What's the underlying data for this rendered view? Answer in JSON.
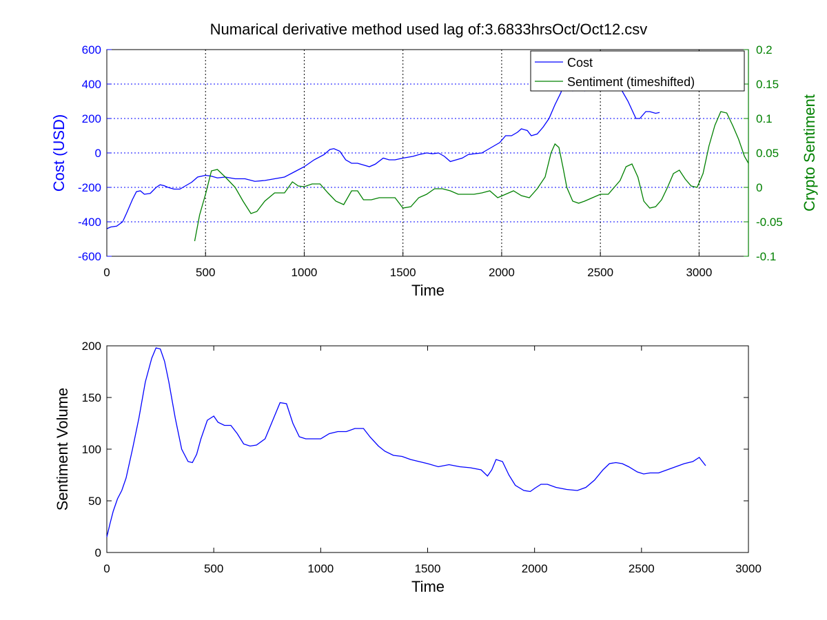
{
  "figure": {
    "title": "Numarical derivative method used lag of:3.6833hrsOct/Oct12.csv",
    "colors": {
      "cost": "#0000ff",
      "sentiment": "#008000",
      "axis": "#000000",
      "grid_x": "#000000",
      "grid_y": "#0000ff"
    }
  },
  "chart_data": [
    {
      "type": "line",
      "title": "Numarical derivative method used lag of:3.6833hrsOct/Oct12.csv",
      "xlabel": "Time",
      "ylabel": "Cost (USD)",
      "y2label": "Crypto Sentiment",
      "xlim": [
        0,
        3250
      ],
      "ylim": [
        -600,
        600
      ],
      "y2lim": [
        -0.1,
        0.2
      ],
      "xticks": [
        0,
        500,
        1000,
        1500,
        2000,
        2500,
        3000
      ],
      "yticks": [
        -600,
        -400,
        -200,
        0,
        200,
        400,
        600
      ],
      "y2ticks": [
        -0.1,
        -0.05,
        0,
        0.05,
        0.1,
        0.15,
        0.2
      ],
      "y2ticklabels": [
        "-0.1",
        "-0.05",
        "0",
        "0.05",
        "0.1",
        "0.15",
        "0.2"
      ],
      "grid": true,
      "legend": {
        "placement": "top-right",
        "entries": [
          "Cost",
          "Sentiment (timeshifted)"
        ]
      },
      "series": [
        {
          "name": "Cost",
          "axis": "left",
          "x": [
            0,
            20,
            50,
            80,
            100,
            130,
            150,
            170,
            190,
            220,
            250,
            270,
            290,
            310,
            340,
            370,
            400,
            430,
            460,
            500,
            530,
            560,
            600,
            650,
            700,
            750,
            800,
            850,
            900,
            950,
            1000,
            1050,
            1100,
            1130,
            1150,
            1180,
            1210,
            1240,
            1270,
            1300,
            1330,
            1360,
            1400,
            1430,
            1460,
            1500,
            1550,
            1580,
            1620,
            1650,
            1680,
            1710,
            1740,
            1770,
            1800,
            1830,
            1860,
            1900,
            1930,
            1960,
            1990,
            2020,
            2050,
            2080,
            2100,
            2130,
            2150,
            2180,
            2210,
            2240,
            2270,
            2300,
            2320,
            2340,
            2360,
            2390,
            2420,
            2450,
            2480,
            2510,
            2540,
            2560,
            2580,
            2610,
            2640,
            2660,
            2680,
            2700,
            2730,
            2750,
            2780,
            2800
          ],
          "y": [
            -440,
            -430,
            -425,
            -400,
            -350,
            -270,
            -225,
            -220,
            -240,
            -235,
            -200,
            -185,
            -190,
            -200,
            -210,
            -210,
            -190,
            -170,
            -140,
            -130,
            -135,
            -145,
            -140,
            -150,
            -150,
            -165,
            -160,
            -150,
            -140,
            -110,
            -80,
            -40,
            -10,
            20,
            25,
            10,
            -40,
            -60,
            -60,
            -70,
            -80,
            -65,
            -30,
            -40,
            -40,
            -30,
            -20,
            -10,
            0,
            -5,
            0,
            -20,
            -50,
            -40,
            -30,
            -10,
            -5,
            0,
            20,
            40,
            60,
            100,
            100,
            120,
            140,
            130,
            100,
            110,
            150,
            200,
            280,
            350,
            420,
            390,
            360,
            370,
            360,
            380,
            420,
            450,
            460,
            440,
            400,
            360,
            300,
            250,
            200,
            200,
            240,
            240,
            230,
            235
          ]
        },
        {
          "name": "Sentiment (timeshifted)",
          "axis": "right",
          "x": [
            445,
            470,
            500,
            530,
            560,
            600,
            650,
            690,
            730,
            760,
            800,
            850,
            900,
            940,
            970,
            1000,
            1040,
            1080,
            1120,
            1160,
            1200,
            1240,
            1270,
            1300,
            1340,
            1380,
            1420,
            1460,
            1500,
            1540,
            1580,
            1620,
            1660,
            1700,
            1740,
            1780,
            1820,
            1860,
            1900,
            1940,
            1980,
            2020,
            2060,
            2100,
            2140,
            2180,
            2220,
            2250,
            2270,
            2290,
            2310,
            2330,
            2360,
            2390,
            2420,
            2460,
            2500,
            2540,
            2570,
            2600,
            2630,
            2660,
            2690,
            2720,
            2750,
            2780,
            2810,
            2840,
            2870,
            2900,
            2930,
            2960,
            2990,
            3020,
            3050,
            3080,
            3110,
            3140,
            3170,
            3200,
            3230,
            3250
          ],
          "y": [
            -0.078,
            -0.04,
            -0.01,
            0.024,
            0.026,
            0.015,
            0.0,
            -0.02,
            -0.038,
            -0.035,
            -0.02,
            -0.008,
            -0.008,
            0.008,
            0.002,
            0.001,
            0.005,
            0.005,
            -0.008,
            -0.02,
            -0.025,
            -0.005,
            -0.005,
            -0.018,
            -0.018,
            -0.015,
            -0.015,
            -0.015,
            -0.03,
            -0.028,
            -0.015,
            -0.01,
            -0.002,
            -0.002,
            -0.005,
            -0.01,
            -0.01,
            -0.01,
            -0.008,
            -0.005,
            -0.015,
            -0.01,
            -0.005,
            -0.012,
            -0.015,
            -0.002,
            0.015,
            0.05,
            0.063,
            0.058,
            0.03,
            0.0,
            -0.02,
            -0.023,
            -0.02,
            -0.015,
            -0.01,
            -0.01,
            0.0,
            0.01,
            0.03,
            0.034,
            0.015,
            -0.02,
            -0.03,
            -0.028,
            -0.018,
            0.0,
            0.02,
            0.025,
            0.012,
            0.002,
            0.0,
            0.02,
            0.06,
            0.09,
            0.11,
            0.108,
            0.09,
            0.07,
            0.045,
            0.035
          ]
        }
      ]
    },
    {
      "type": "line",
      "xlabel": "Time",
      "ylabel": "Sentiment Volume",
      "xlim": [
        0,
        3000
      ],
      "ylim": [
        0,
        200
      ],
      "xticks": [
        0,
        500,
        1000,
        1500,
        2000,
        2500,
        3000
      ],
      "yticks": [
        0,
        50,
        100,
        150,
        200
      ],
      "grid": false,
      "series": [
        {
          "x": [
            0,
            15,
            30,
            50,
            70,
            90,
            120,
            150,
            180,
            210,
            230,
            250,
            270,
            290,
            320,
            350,
            380,
            400,
            420,
            440,
            470,
            500,
            520,
            550,
            580,
            610,
            640,
            670,
            700,
            740,
            780,
            810,
            840,
            870,
            900,
            930,
            960,
            1000,
            1040,
            1080,
            1120,
            1160,
            1200,
            1230,
            1270,
            1300,
            1340,
            1380,
            1420,
            1460,
            1500,
            1550,
            1600,
            1650,
            1700,
            1750,
            1780,
            1800,
            1820,
            1850,
            1880,
            1910,
            1950,
            1980,
            2000,
            2030,
            2060,
            2100,
            2150,
            2200,
            2240,
            2280,
            2320,
            2350,
            2380,
            2410,
            2440,
            2480,
            2510,
            2540,
            2580,
            2620,
            2660,
            2700,
            2740,
            2770,
            2800
          ],
          "y": [
            15,
            28,
            40,
            52,
            60,
            72,
            100,
            130,
            165,
            188,
            198,
            197,
            185,
            165,
            130,
            100,
            88,
            87,
            95,
            110,
            128,
            132,
            126,
            123,
            123,
            115,
            105,
            103,
            104,
            110,
            130,
            145,
            144,
            125,
            112,
            110,
            110,
            110,
            115,
            117,
            117,
            120,
            120,
            112,
            103,
            98,
            94,
            93,
            90,
            88,
            86,
            83,
            85,
            83,
            82,
            80,
            74,
            80,
            90,
            88,
            75,
            65,
            60,
            59,
            62,
            66,
            66,
            63,
            61,
            60,
            63,
            70,
            80,
            86,
            87,
            86,
            83,
            78,
            76,
            77,
            77,
            80,
            83,
            86,
            88,
            92,
            84
          ]
        }
      ]
    }
  ]
}
